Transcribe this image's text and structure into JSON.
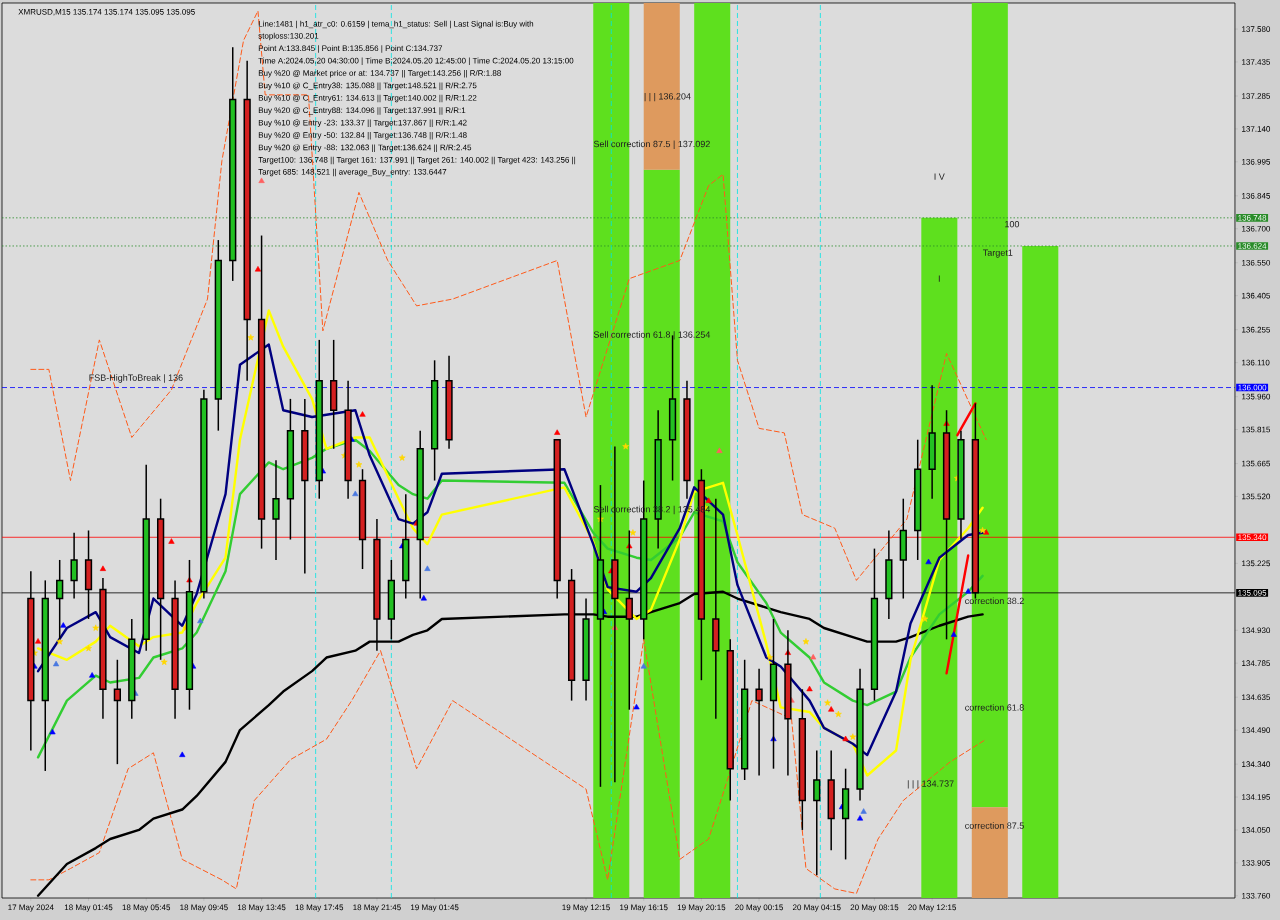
{
  "chart_data": {
    "type": "candlestick",
    "title": "XMRUSD,M15 135.174 135.174 135.095 135.095",
    "annotations": [
      "Line:1481 | h1_atr_c0: 0.6159 | tema_h1_status: Sell | Last Signal is:Buy with stoploss:130.201",
      "Point A:133.845 | Point B:135.856 | Point C:134.737",
      "Time A:2024.05.20 04:30:00 | Time B:2024.05.20 12:45:00 | Time C:2024.05.20 13:15:00",
      "Buy %20 @ Market price or at: 134.737 || Target:143.256 || R/R:1.88",
      "Buy %10 @ C_Entry38: 135.088 || Target:148.521 || R/R:2.75",
      "Buy %10 @ C_Entry61: 134.613 || Target:140.002 || R/R:1.22",
      "Buy %20 @ C_Entry88: 134.096 || Target:137.991 || R/R:1",
      "Buy %10 @ Entry -23: 133.37 || Target:137.867 || R/R:1.42",
      "Buy %20 @ Entry -50: 132.84 || Target:136.748 || R/R:1.48",
      "Buy %20 @ Entry -88: 132.063 || Target:136.624 || R/R:2.45",
      "Target100: 136.748 || Target 161: 137.991 || Target 261: 140.002 || Target 423: 143.256 || Target 685: 148.521 || average_Buy_entry: 133.6447",
      {
        "text": "FSB-HighToBreak | 136",
        "x": "2024-05-18T01:45",
        "y": 136.04
      },
      {
        "text": "Sell correction 87.5 | 137.092",
        "x": "2024-05-19T12:45",
        "y": 137.07
      },
      {
        "text": "Sell correction 61.8 | 136.254",
        "x": "2024-05-19T12:45",
        "y": 136.23
      },
      {
        "text": "Sell correction 38.2 | 135.484",
        "x": "2024-05-19T12:45",
        "y": 135.46
      },
      {
        "text": "| | | 136.204",
        "x": "2024-05-19T16:15",
        "y": 137.28
      },
      "I V",
      "I",
      {
        "text": "100",
        "x": "2024-05-20T17:15",
        "y": 136.72
      },
      "Target1",
      {
        "text": "correction 38.2",
        "x": "2024-05-20T14:30",
        "y": 135.06
      },
      "correction 61.8",
      "correction 87.5",
      "| | | 134.737"
    ],
    "x": [
      "2024-05-17T21:45",
      "2024-05-17T22:45",
      "2024-05-17T23:45",
      "2024-05-18T00:45",
      "2024-05-18T01:45",
      "2024-05-18T02:45",
      "2024-05-18T03:45",
      "2024-05-18T04:45",
      "2024-05-18T05:45",
      "2024-05-18T06:45",
      "2024-05-18T07:45",
      "2024-05-18T08:45",
      "2024-05-18T09:45",
      "2024-05-18T10:45",
      "2024-05-18T11:45",
      "2024-05-18T12:45",
      "2024-05-18T13:45",
      "2024-05-18T14:45",
      "2024-05-18T15:45",
      "2024-05-18T16:45",
      "2024-05-18T17:45",
      "2024-05-18T18:45",
      "2024-05-18T19:45",
      "2024-05-18T20:45",
      "2024-05-18T21:45",
      "2024-05-18T22:45",
      "2024-05-18T23:45",
      "2024-05-19T00:45",
      "2024-05-19T01:45",
      "2024-05-19T02:45",
      "2024-05-19T10:15",
      "2024-05-19T11:15",
      "2024-05-19T12:15",
      "2024-05-19T13:15",
      "2024-05-19T14:15",
      "2024-05-19T15:15",
      "2024-05-19T16:15",
      "2024-05-19T17:15",
      "2024-05-19T18:15",
      "2024-05-19T19:15",
      "2024-05-19T20:15",
      "2024-05-19T21:15",
      "2024-05-19T22:15",
      "2024-05-19T23:15",
      "2024-05-20T00:15",
      "2024-05-20T01:15",
      "2024-05-20T02:15",
      "2024-05-20T03:15",
      "2024-05-20T04:15",
      "2024-05-20T05:15",
      "2024-05-20T06:15",
      "2024-05-20T07:15",
      "2024-05-20T08:15",
      "2024-05-20T09:15",
      "2024-05-20T10:15",
      "2024-05-20T11:15",
      "2024-05-20T12:15",
      "2024-05-20T13:15",
      "2024-05-20T14:15",
      "2024-05-20T15:15"
    ],
    "ohlc": [
      [
        135.07,
        135.19,
        134.4,
        134.62
      ],
      [
        134.62,
        135.15,
        134.31,
        135.07
      ],
      [
        135.07,
        135.24,
        134.89,
        135.15
      ],
      [
        135.15,
        135.36,
        135.07,
        135.24
      ],
      [
        135.24,
        135.37,
        134.98,
        135.11
      ],
      [
        135.11,
        135.16,
        134.54,
        134.67
      ],
      [
        134.67,
        134.8,
        134.34,
        134.62
      ],
      [
        134.62,
        134.98,
        134.54,
        134.89
      ],
      [
        134.89,
        135.66,
        134.84,
        135.42
      ],
      [
        135.42,
        135.51,
        134.8,
        135.07
      ],
      [
        135.07,
        135.15,
        134.54,
        134.67
      ],
      [
        134.67,
        135.24,
        134.58,
        135.1
      ],
      [
        135.1,
        135.99,
        135.07,
        135.95
      ],
      [
        135.95,
        136.65,
        135.81,
        136.56
      ],
      [
        136.56,
        137.5,
        136.47,
        137.27
      ],
      [
        137.27,
        137.44,
        136.03,
        136.3
      ],
      [
        136.3,
        136.67,
        135.29,
        135.42
      ],
      [
        135.42,
        135.68,
        135.24,
        135.51
      ],
      [
        135.51,
        135.95,
        135.33,
        135.81
      ],
      [
        135.81,
        135.95,
        135.18,
        135.59
      ],
      [
        135.59,
        136.21,
        135.51,
        136.03
      ],
      [
        136.03,
        136.21,
        135.73,
        135.9
      ],
      [
        135.9,
        136.03,
        135.51,
        135.59
      ],
      [
        135.59,
        135.64,
        135.2,
        135.33
      ],
      [
        135.33,
        135.42,
        134.84,
        134.98
      ],
      [
        134.98,
        135.24,
        134.89,
        135.15
      ],
      [
        135.15,
        135.53,
        135.07,
        135.33
      ],
      [
        135.33,
        135.81,
        135.07,
        135.73
      ],
      [
        135.73,
        136.12,
        135.59,
        136.03
      ],
      [
        136.03,
        136.14,
        135.73,
        135.77
      ],
      [
        135.77,
        135.77,
        135.07,
        135.15
      ],
      [
        135.15,
        135.2,
        134.62,
        134.71
      ],
      [
        134.71,
        135.07,
        134.62,
        134.98
      ],
      [
        134.98,
        135.57,
        134.24,
        135.24
      ],
      [
        135.24,
        135.74,
        134.26,
        135.07
      ],
      [
        135.07,
        135.37,
        134.58,
        134.98
      ],
      [
        134.98,
        135.59,
        134.89,
        135.42
      ],
      [
        135.42,
        135.9,
        135.29,
        135.77
      ],
      [
        135.77,
        136.23,
        135.59,
        135.95
      ],
      [
        135.95,
        136.03,
        135.51,
        135.59
      ],
      [
        135.59,
        135.64,
        134.71,
        134.98
      ],
      [
        134.98,
        135.51,
        134.54,
        134.84
      ],
      [
        134.84,
        134.89,
        134.18,
        134.32
      ],
      [
        134.32,
        134.8,
        134.27,
        134.67
      ],
      [
        134.67,
        134.76,
        134.29,
        134.62
      ],
      [
        134.62,
        134.98,
        134.32,
        134.78
      ],
      [
        134.78,
        134.93,
        134.29,
        134.54
      ],
      [
        134.54,
        134.67,
        134.05,
        134.18
      ],
      [
        134.18,
        134.4,
        133.85,
        134.27
      ],
      [
        134.27,
        134.4,
        133.96,
        134.1
      ],
      [
        134.1,
        134.32,
        133.92,
        134.23
      ],
      [
        134.23,
        134.76,
        134.18,
        134.67
      ],
      [
        134.67,
        135.29,
        134.62,
        135.07
      ],
      [
        135.07,
        135.37,
        134.98,
        135.24
      ],
      [
        135.24,
        135.51,
        135.07,
        135.37
      ],
      [
        135.37,
        135.77,
        135.24,
        135.64
      ],
      [
        135.64,
        136.01,
        135.51,
        135.8
      ],
      [
        135.8,
        135.9,
        134.89,
        135.42
      ],
      [
        135.42,
        135.81,
        135.33,
        135.77
      ],
      [
        135.77,
        135.93,
        135.07,
        135.095
      ]
    ],
    "xlim": [
      "2024-05-17T19:45",
      "2024-05-21T09:15"
    ],
    "xticks": [
      {
        "value": "2024-05-17T21:45",
        "label": "17 May 2024"
      },
      {
        "value": "2024-05-18T01:45",
        "label": "18 May 01:45"
      },
      {
        "value": "2024-05-18T05:45",
        "label": "18 May 05:45"
      },
      {
        "value": "2024-05-18T09:45",
        "label": "18 May 09:45"
      },
      {
        "value": "2024-05-18T13:45",
        "label": "18 May 13:45"
      },
      {
        "value": "2024-05-18T17:45",
        "label": "18 May 17:45"
      },
      {
        "value": "2024-05-18T21:45",
        "label": "18 May 21:45"
      },
      {
        "value": "2024-05-19T01:45",
        "label": "19 May 01:45"
      },
      {
        "value": "2024-05-19T12:15",
        "label": "19 May 12:15"
      },
      {
        "value": "2024-05-19T16:15",
        "label": "19 May 16:15"
      },
      {
        "value": "2024-05-19T20:15",
        "label": "19 May 20:15"
      },
      {
        "value": "2024-05-20T00:15",
        "label": "20 May 00:15"
      },
      {
        "value": "2024-05-20T04:15",
        "label": "20 May 04:15"
      },
      {
        "value": "2024-05-20T08:15",
        "label": "20 May 08:15"
      },
      {
        "value": "2024-05-20T12:15",
        "label": "20 May 12:15"
      }
    ],
    "ylim": [
      133.75,
      137.695
    ],
    "yticks": [
      {
        "value": 137.58,
        "label": "137.580"
      },
      {
        "value": 137.435,
        "label": "137.435"
      },
      {
        "value": 137.285,
        "label": "137.285"
      },
      {
        "value": 137.14,
        "label": "137.140"
      },
      {
        "value": 136.995,
        "label": "136.995"
      },
      {
        "value": 136.845,
        "label": "136.845"
      },
      {
        "value": 136.7,
        "label": "136.700"
      },
      {
        "value": 136.55,
        "label": "136.550"
      },
      {
        "value": 136.405,
        "label": "136.405"
      },
      {
        "value": 136.255,
        "label": "136.255"
      },
      {
        "value": 136.11,
        "label": "136.110"
      },
      {
        "value": 135.96,
        "label": "135.960"
      },
      {
        "value": 135.815,
        "label": "135.815"
      },
      {
        "value": 135.665,
        "label": "135.665"
      },
      {
        "value": 135.52,
        "label": "135.520"
      },
      {
        "value": 135.225,
        "label": "135.225"
      },
      {
        "value": 134.93,
        "label": "134.930"
      },
      {
        "value": 134.785,
        "label": "134.785"
      },
      {
        "value": 134.635,
        "label": "134.635"
      },
      {
        "value": 134.49,
        "label": "134.490"
      },
      {
        "value": 134.34,
        "label": "134.340"
      },
      {
        "value": 134.195,
        "label": "134.195"
      },
      {
        "value": 134.05,
        "label": "134.050"
      },
      {
        "value": 133.905,
        "label": "133.905"
      },
      {
        "value": 133.76,
        "label": "133.760"
      }
    ],
    "series": [
      {
        "type": "bar",
        "color": "#5ee01e",
        "x": [
          "2024-05-19T14:00",
          "2024-05-19T17:30",
          "2024-05-19T21:00",
          "2024-05-20T12:45",
          "2024-05-20T16:15",
          "2024-05-20T19:45"
        ],
        "base": [
          133.75,
          133.75,
          133.75,
          133.75,
          134.15,
          133.75
        ],
        "values": [
          3.945,
          3.21,
          3.945,
          2.998,
          3.545,
          2.874
        ]
      },
      {
        "type": "bar",
        "color": "#de9a5e",
        "x": [
          "2024-05-19T17:30",
          "2024-05-20T16:15"
        ],
        "base": [
          136.96,
          133.75
        ],
        "values": [
          0.735,
          0.4
        ]
      },
      {
        "type": "line",
        "color": "#ff5a1a",
        "line_style": "dashed",
        "x": [
          "2024-05-17T21:45",
          "2024-05-17T23:00",
          "2024-05-18T00:30",
          "2024-05-18T02:30",
          "2024-05-18T04:45",
          "2024-05-18T07:30",
          "2024-05-18T10:00",
          "2024-05-18T11:00",
          "2024-05-18T12:30",
          "2024-05-18T13:30",
          "2024-05-18T14:00",
          "2024-05-18T17:00",
          "2024-05-18T18:00",
          "2024-05-18T20:30",
          "2024-05-18T22:30",
          "2024-05-19T00:30",
          "2024-05-19T03:00",
          "2024-05-19T10:15",
          "2024-05-19T12:15",
          "2024-05-19T15:15",
          "2024-05-19T18:45",
          "2024-05-19T20:45",
          "2024-05-19T21:45",
          "2024-05-19T22:45",
          "2024-05-20T00:15",
          "2024-05-20T02:00",
          "2024-05-20T03:15",
          "2024-05-20T05:30",
          "2024-05-20T07:00",
          "2024-05-20T10:30",
          "2024-05-20T13:15",
          "2024-05-20T16:00"
        ],
        "values": [
          136.08,
          136.08,
          135.59,
          136.21,
          135.78,
          135.99,
          136.39,
          137.0,
          137.53,
          137.66,
          137.29,
          137.29,
          136.25,
          136.86,
          136.56,
          136.36,
          136.39,
          136.56,
          135.87,
          136.48,
          136.56,
          136.89,
          136.94,
          136.12,
          135.82,
          135.8,
          135.44,
          135.38,
          135.15,
          135.42,
          136.15,
          135.77
        ]
      },
      {
        "type": "line",
        "color": "#ff5a1a",
        "line_style": "dashed",
        "x": [
          "2024-05-17T21:45",
          "2024-05-17T23:00",
          "2024-05-18T00:30",
          "2024-05-18T02:30",
          "2024-05-18T04:30",
          "2024-05-18T06:15",
          "2024-05-18T08:15",
          "2024-05-18T11:00",
          "2024-05-18T12:00",
          "2024-05-18T13:15",
          "2024-05-18T15:45",
          "2024-05-18T18:15",
          "2024-05-18T20:00",
          "2024-05-18T22:00",
          "2024-05-19T00:30",
          "2024-05-19T03:00",
          "2024-05-19T12:15",
          "2024-05-19T13:45",
          "2024-05-19T16:15",
          "2024-05-19T18:45",
          "2024-05-19T20:45",
          "2024-05-19T22:30",
          "2024-05-19T23:45",
          "2024-05-20T02:30",
          "2024-05-20T03:30",
          "2024-05-20T05:30",
          "2024-05-20T07:00",
          "2024-05-20T08:30",
          "2024-05-20T10:15",
          "2024-05-20T13:30",
          "2024-05-20T16:00"
        ],
        "values": [
          133.83,
          133.83,
          133.88,
          133.95,
          134.32,
          134.39,
          133.92,
          133.83,
          133.79,
          134.18,
          134.36,
          134.45,
          134.62,
          134.84,
          134.32,
          134.62,
          134.23,
          133.83,
          134.89,
          133.92,
          134.01,
          134.36,
          134.62,
          134.54,
          133.88,
          133.79,
          133.77,
          134.01,
          134.18,
          134.35,
          134.45
        ]
      },
      {
        "type": "line",
        "color": "#000000",
        "x": [
          "2024-05-17T22:15",
          "2024-05-18T00:15",
          "2024-05-18T02:15",
          "2024-05-18T03:15",
          "2024-05-18T05:15",
          "2024-05-18T06:15",
          "2024-05-18T08:15",
          "2024-05-18T09:15",
          "2024-05-18T11:15",
          "2024-05-18T12:15",
          "2024-05-18T14:15",
          "2024-05-18T15:15",
          "2024-05-18T17:15",
          "2024-05-18T18:15",
          "2024-05-18T20:15",
          "2024-05-18T21:15",
          "2024-05-18T23:15",
          "2024-05-19T00:15",
          "2024-05-19T01:15",
          "2024-05-19T02:15",
          "2024-05-19T10:45",
          "2024-05-19T12:45",
          "2024-05-19T13:45",
          "2024-05-19T15:45",
          "2024-05-19T16:45",
          "2024-05-19T18:45",
          "2024-05-19T19:45",
          "2024-05-19T21:45",
          "2024-05-19T22:45",
          "2024-05-20T00:45",
          "2024-05-20T01:45",
          "2024-05-20T03:45",
          "2024-05-20T04:45",
          "2024-05-20T06:45",
          "2024-05-20T07:45",
          "2024-05-20T09:45",
          "2024-05-20T10:45",
          "2024-05-20T12:45",
          "2024-05-20T14:45",
          "2024-05-20T15:45"
        ],
        "values": [
          133.76,
          133.9,
          133.97,
          134.01,
          134.05,
          134.1,
          134.14,
          134.2,
          134.35,
          134.49,
          134.6,
          134.66,
          134.75,
          134.81,
          134.84,
          134.88,
          134.88,
          134.91,
          134.93,
          134.98,
          135.0,
          135.0,
          134.99,
          134.99,
          135.01,
          135.05,
          135.09,
          135.1,
          135.07,
          135.03,
          135.01,
          134.98,
          134.94,
          134.9,
          134.88,
          134.88,
          134.9,
          134.95,
          134.99,
          135.0
        ]
      },
      {
        "type": "line",
        "color": "#32cd32",
        "x": [
          "2024-05-17T22:15",
          "2024-05-18T00:15",
          "2024-05-18T02:15",
          "2024-05-18T03:15",
          "2024-05-18T05:15",
          "2024-05-18T06:15",
          "2024-05-18T08:15",
          "2024-05-18T09:15",
          "2024-05-18T11:15",
          "2024-05-18T12:15",
          "2024-05-18T14:15",
          "2024-05-18T15:15",
          "2024-05-18T17:15",
          "2024-05-18T18:15",
          "2024-05-18T20:15",
          "2024-05-18T21:15",
          "2024-05-18T23:15",
          "2024-05-19T00:15",
          "2024-05-19T01:15",
          "2024-05-19T02:15",
          "2024-05-19T10:45",
          "2024-05-19T12:45",
          "2024-05-19T13:45",
          "2024-05-19T15:45",
          "2024-05-19T16:45",
          "2024-05-19T18:45",
          "2024-05-19T19:45",
          "2024-05-19T21:45",
          "2024-05-19T22:45",
          "2024-05-20T00:45",
          "2024-05-20T01:45",
          "2024-05-20T03:45",
          "2024-05-20T04:45",
          "2024-05-20T06:45",
          "2024-05-20T07:45",
          "2024-05-20T09:45",
          "2024-05-20T10:45",
          "2024-05-20T12:45",
          "2024-05-20T14:45",
          "2024-05-20T15:45"
        ],
        "values": [
          134.37,
          134.62,
          134.73,
          134.7,
          134.72,
          134.81,
          134.85,
          134.92,
          135.19,
          135.53,
          135.67,
          135.64,
          135.69,
          135.73,
          135.77,
          135.72,
          135.57,
          135.53,
          135.51,
          135.59,
          135.58,
          135.36,
          135.29,
          135.25,
          135.24,
          135.34,
          135.45,
          135.41,
          135.23,
          135.05,
          134.92,
          134.81,
          134.7,
          134.62,
          134.6,
          134.66,
          134.81,
          135.0,
          135.1,
          135.17
        ]
      },
      {
        "type": "line",
        "color": "#ffff00",
        "x": [
          "2024-05-17T22:15",
          "2024-05-18T00:15",
          "2024-05-18T02:15",
          "2024-05-18T03:15",
          "2024-05-18T05:15",
          "2024-05-18T06:15",
          "2024-05-18T08:15",
          "2024-05-18T09:15",
          "2024-05-18T11:15",
          "2024-05-18T12:15",
          "2024-05-18T14:15",
          "2024-05-18T15:15",
          "2024-05-18T17:15",
          "2024-05-18T18:15",
          "2024-05-18T20:15",
          "2024-05-18T21:15",
          "2024-05-18T23:15",
          "2024-05-19T00:15",
          "2024-05-19T01:15",
          "2024-05-19T02:15",
          "2024-05-19T10:45",
          "2024-05-19T12:45",
          "2024-05-19T13:45",
          "2024-05-19T15:45",
          "2024-05-19T16:45",
          "2024-05-19T18:45",
          "2024-05-19T19:45",
          "2024-05-19T21:45",
          "2024-05-19T22:45",
          "2024-05-20T00:45",
          "2024-05-20T01:45",
          "2024-05-20T03:45",
          "2024-05-20T04:45",
          "2024-05-20T06:45",
          "2024-05-20T07:45",
          "2024-05-20T09:45",
          "2024-05-20T10:45",
          "2024-05-20T12:45",
          "2024-05-20T14:45",
          "2024-05-20T15:45"
        ],
        "values": [
          134.85,
          134.8,
          134.88,
          134.95,
          134.86,
          134.9,
          134.92,
          135.05,
          135.25,
          135.77,
          136.34,
          136.18,
          135.95,
          135.73,
          135.78,
          135.78,
          135.51,
          135.38,
          135.31,
          135.44,
          135.56,
          135.32,
          135.11,
          134.98,
          135.02,
          135.33,
          135.54,
          135.58,
          135.35,
          134.87,
          134.59,
          134.57,
          134.5,
          134.43,
          134.29,
          134.4,
          134.8,
          135.24,
          135.38,
          135.47
        ]
      },
      {
        "type": "line",
        "color": "#000080",
        "x": [
          "2024-05-17T22:15",
          "2024-05-18T00:15",
          "2024-05-18T02:15",
          "2024-05-18T03:15",
          "2024-05-18T05:15",
          "2024-05-18T06:15",
          "2024-05-18T08:15",
          "2024-05-18T09:15",
          "2024-05-18T11:15",
          "2024-05-18T12:15",
          "2024-05-18T14:15",
          "2024-05-18T15:15",
          "2024-05-18T17:15",
          "2024-05-18T18:15",
          "2024-05-18T20:15",
          "2024-05-18T21:15",
          "2024-05-18T23:15",
          "2024-05-19T00:15",
          "2024-05-19T01:15",
          "2024-05-19T02:15",
          "2024-05-19T10:45",
          "2024-05-19T12:45",
          "2024-05-19T13:45",
          "2024-05-19T15:45",
          "2024-05-19T16:45",
          "2024-05-19T18:45",
          "2024-05-19T19:45",
          "2024-05-19T21:45",
          "2024-05-19T22:45",
          "2024-05-20T00:45",
          "2024-05-20T01:45",
          "2024-05-20T03:45",
          "2024-05-20T04:45",
          "2024-05-20T06:45",
          "2024-05-20T07:45",
          "2024-05-20T09:45",
          "2024-05-20T10:45",
          "2024-05-20T12:45",
          "2024-05-20T14:45",
          "2024-05-20T15:45"
        ],
        "values": [
          134.75,
          134.94,
          135.01,
          134.9,
          134.83,
          135.07,
          134.95,
          135.09,
          135.53,
          136.1,
          136.19,
          135.9,
          135.87,
          135.88,
          135.9,
          135.7,
          135.42,
          135.4,
          135.45,
          135.62,
          135.64,
          135.31,
          135.12,
          135.1,
          135.16,
          135.38,
          135.56,
          135.44,
          135.13,
          134.81,
          134.77,
          134.62,
          134.5,
          134.43,
          134.38,
          134.66,
          134.96,
          135.25,
          135.35,
          135.36
        ]
      },
      {
        "type": "line",
        "color": "#ff0000",
        "x": [
          "2024-05-20T14:00",
          "2024-05-20T15:15"
        ],
        "values": [
          135.79,
          135.93
        ]
      },
      {
        "type": "line",
        "color": "#ff0000",
        "x": [
          "2024-05-20T13:15",
          "2024-05-20T14:45"
        ],
        "values": [
          134.74,
          135.26
        ]
      },
      {
        "type": "scatter",
        "color": "#ff0000",
        "marker": "triangle",
        "x": [
          "2024-05-17T22:15",
          "2024-05-18T02:45",
          "2024-05-18T07:30",
          "2024-05-18T08:45",
          "2024-05-18T13:30",
          "2024-05-18T20:45",
          "2024-05-19T00:30",
          "2024-05-19T10:15",
          "2024-05-19T14:00",
          "2024-05-19T15:15",
          "2024-05-19T20:45",
          "2024-05-20T02:15",
          "2024-05-20T03:45",
          "2024-05-20T05:15",
          "2024-05-20T06:15",
          "2024-05-20T13:15",
          "2024-05-20T16:00"
        ],
        "values": [
          134.88,
          135.2,
          135.32,
          135.15,
          136.52,
          135.88,
          135.4,
          135.8,
          135.19,
          135.3,
          135.5,
          134.83,
          134.67,
          134.58,
          134.45,
          135.84,
          135.36
        ]
      },
      {
        "type": "scatter",
        "color": "#0000ff",
        "marker": "triangle",
        "x": [
          "2024-05-17T22:00",
          "2024-05-17T23:15",
          "2024-05-18T00:00",
          "2024-05-18T02:00",
          "2024-05-18T08:15",
          "2024-05-18T09:00",
          "2024-05-18T18:00",
          "2024-05-18T20:00",
          "2024-05-18T23:30",
          "2024-05-19T01:00",
          "2024-05-19T13:30",
          "2024-05-19T15:45",
          "2024-05-20T01:15",
          "2024-05-20T06:00",
          "2024-05-20T07:15",
          "2024-05-20T12:00",
          "2024-05-20T13:45",
          "2024-05-20T14:45"
        ],
        "values": [
          134.77,
          134.48,
          134.95,
          134.73,
          134.38,
          134.77,
          135.63,
          135.77,
          135.3,
          135.07,
          135.01,
          134.59,
          134.45,
          134.15,
          134.1,
          135.23,
          134.91,
          135.1
        ]
      },
      {
        "type": "scatter",
        "color": "#ff6060",
        "marker": "triangle",
        "x": [
          "2024-05-18T13:45",
          "2024-05-19T14:15",
          "2024-05-19T21:30",
          "2024-05-20T02:30",
          "2024-05-20T04:00"
        ],
        "values": [
          136.91,
          134.94,
          135.72,
          134.62,
          134.81
        ]
      },
      {
        "type": "scatter",
        "color": "#4a78e0",
        "marker": "triangle",
        "x": [
          "2024-05-17T23:30",
          "2024-05-18T05:00",
          "2024-05-18T09:30",
          "2024-05-18T20:15",
          "2024-05-19T01:15",
          "2024-05-19T16:15",
          "2024-05-20T07:30"
        ],
        "values": [
          134.78,
          134.65,
          134.97,
          135.53,
          135.2,
          134.77,
          134.13
        ]
      },
      {
        "type": "scatter",
        "color": "#ffd700",
        "marker": "star",
        "x": [
          "2024-05-17T22:00",
          "2024-05-17T23:45",
          "2024-05-18T01:45",
          "2024-05-18T02:15",
          "2024-05-18T07:00",
          "2024-05-18T08:30",
          "2024-05-18T13:00",
          "2024-05-18T19:30",
          "2024-05-18T20:30",
          "2024-05-18T23:30",
          "2024-05-19T13:15",
          "2024-05-19T15:00",
          "2024-05-19T15:30",
          "2024-05-19T20:30",
          "2024-05-20T01:00",
          "2024-05-20T03:30",
          "2024-05-20T05:00",
          "2024-05-20T05:45",
          "2024-05-20T06:45",
          "2024-05-20T11:45",
          "2024-05-20T14:00",
          "2024-05-20T15:45"
        ],
        "values": [
          134.83,
          134.88,
          134.85,
          134.94,
          134.79,
          134.94,
          136.22,
          135.7,
          135.66,
          135.69,
          135.42,
          135.74,
          135.36,
          135.47,
          134.81,
          134.88,
          134.61,
          134.56,
          134.46,
          134.98,
          135.6,
          135.37
        ]
      }
    ],
    "ref_lines": [
      {
        "axis": "y",
        "value": 136.748,
        "label": "136.748",
        "color": "#2a8c2a",
        "line_style": "dotted"
      },
      {
        "axis": "y",
        "value": 136.624,
        "label": "136.624",
        "color": "#2a8c2a",
        "line_style": "dotted"
      },
      {
        "axis": "y",
        "value": 136.0,
        "label": "136.000",
        "color": "#0000ff",
        "line_style": "dashed"
      },
      {
        "axis": "y",
        "value": 135.34,
        "label": "135.340",
        "color": "#ff0000",
        "line_style": "solid"
      },
      {
        "axis": "y",
        "value": 135.095,
        "label": "135.095",
        "color": "#000000",
        "line_style": "solid"
      },
      {
        "axis": "x",
        "value": "2024-05-18T17:30",
        "color": "#00e5e5",
        "line_style": "dashed"
      },
      {
        "axis": "x",
        "value": "2024-05-18T22:45",
        "color": "#00e5e5",
        "line_style": "dashed"
      },
      {
        "axis": "x",
        "value": "2024-05-19T14:00",
        "color": "#00e5e5",
        "line_style": "dashed"
      },
      {
        "axis": "x",
        "value": "2024-05-19T22:45",
        "color": "#00e5e5",
        "line_style": "dashed"
      },
      {
        "axis": "x",
        "value": "2024-05-20T04:30",
        "color": "#00e5e5",
        "line_style": "dashed"
      }
    ]
  }
}
